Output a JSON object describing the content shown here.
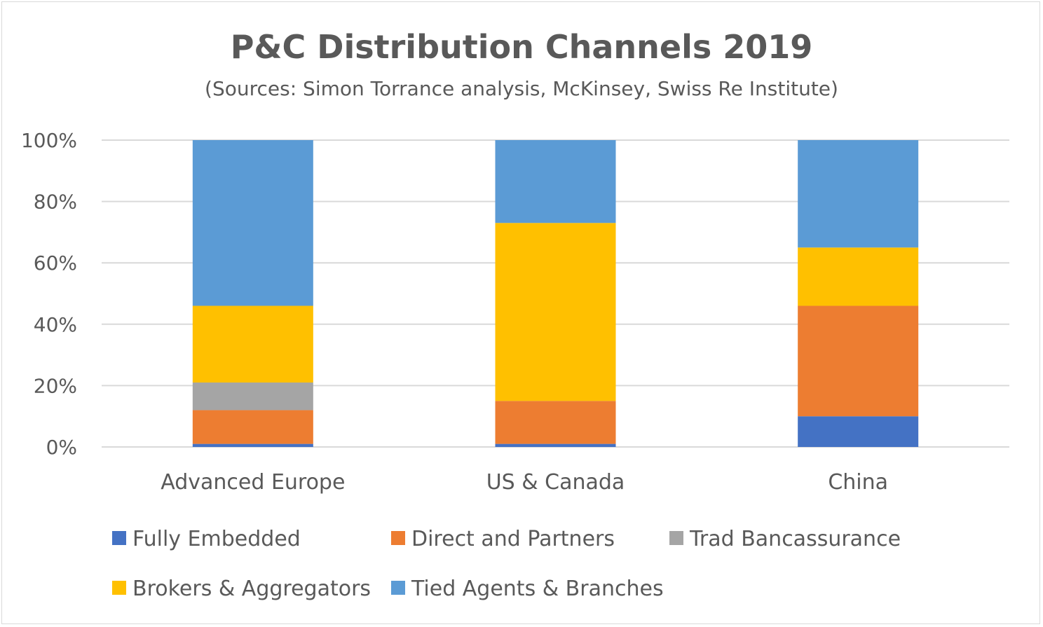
{
  "chart_data": {
    "type": "bar",
    "stacked": true,
    "title": "P&C Distribution Channels 2019",
    "subtitle": "(Sources: Simon Torrance analysis, McKinsey, Swiss Re Institute)",
    "categories": [
      "Advanced Europe",
      "US & Canada",
      "China"
    ],
    "series": [
      {
        "name": "Fully Embedded",
        "color": "#4472C4",
        "values": [
          1,
          1,
          10
        ]
      },
      {
        "name": "Direct and Partners",
        "color": "#ED7D31",
        "values": [
          11,
          14,
          36
        ]
      },
      {
        "name": "Trad Bancassurance",
        "color": "#A5A5A5",
        "values": [
          9,
          0,
          0
        ]
      },
      {
        "name": "Brokers & Aggregators",
        "color": "#FFC000",
        "values": [
          25,
          58,
          19
        ]
      },
      {
        "name": "Tied Agents & Branches",
        "color": "#5B9BD5",
        "values": [
          54,
          27,
          35
        ]
      }
    ],
    "ylim": [
      0,
      100
    ],
    "yticks": [
      "0%",
      "20%",
      "40%",
      "60%",
      "80%",
      "100%"
    ],
    "ytick_values": [
      0,
      20,
      40,
      60,
      80,
      100
    ],
    "grid": true,
    "legend_position": "bottom"
  }
}
